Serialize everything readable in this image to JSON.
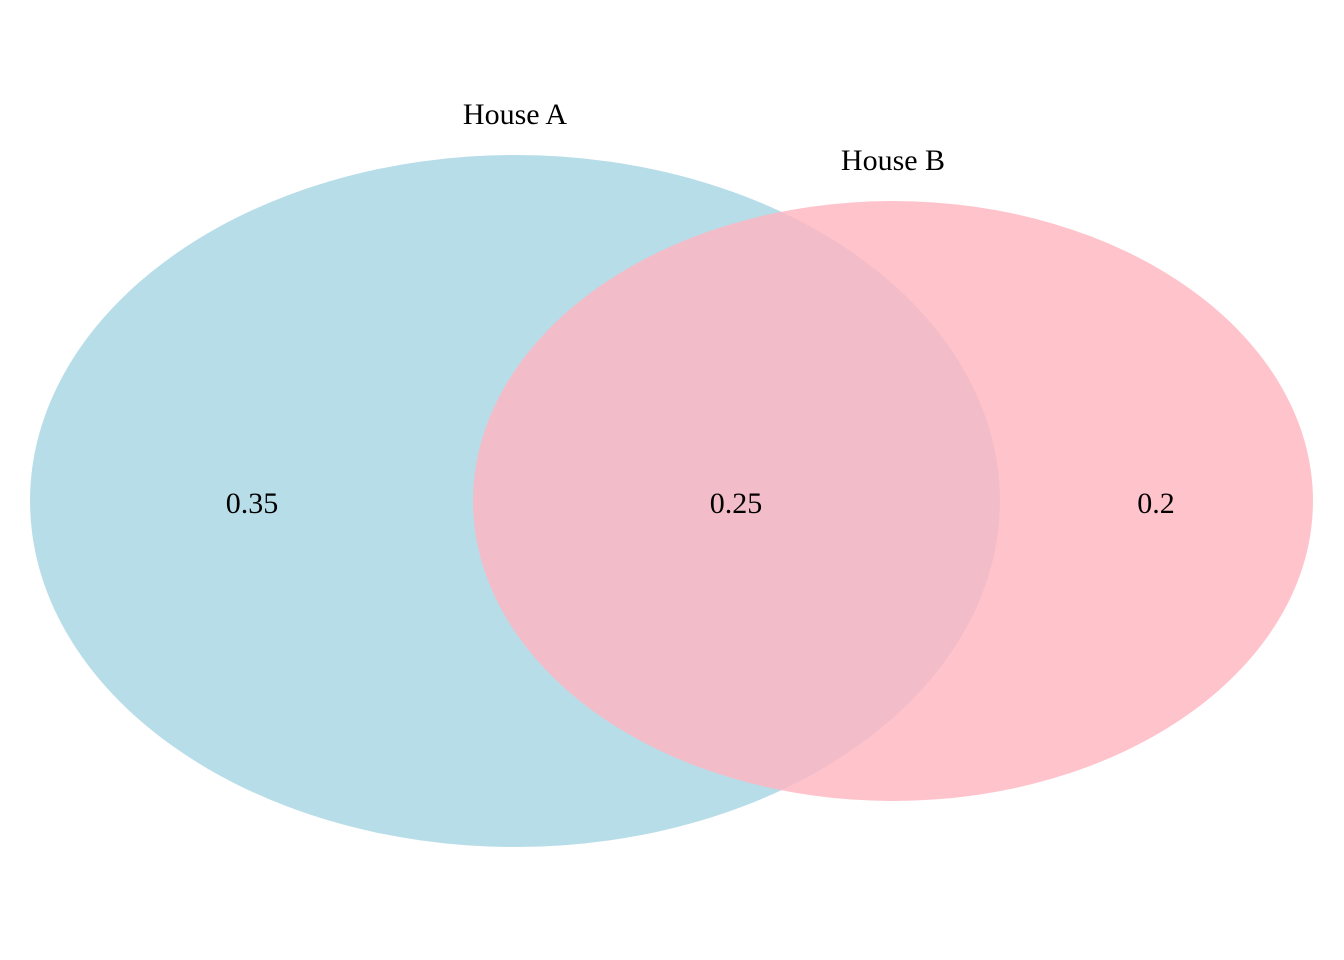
{
  "sets": [
    {
      "label": "House A",
      "color": "#add8e6",
      "only_value": "0.35"
    },
    {
      "label": "House B",
      "color": "#ffb6c1",
      "only_value": "0.2"
    }
  ],
  "intersection_value": "0.25"
}
